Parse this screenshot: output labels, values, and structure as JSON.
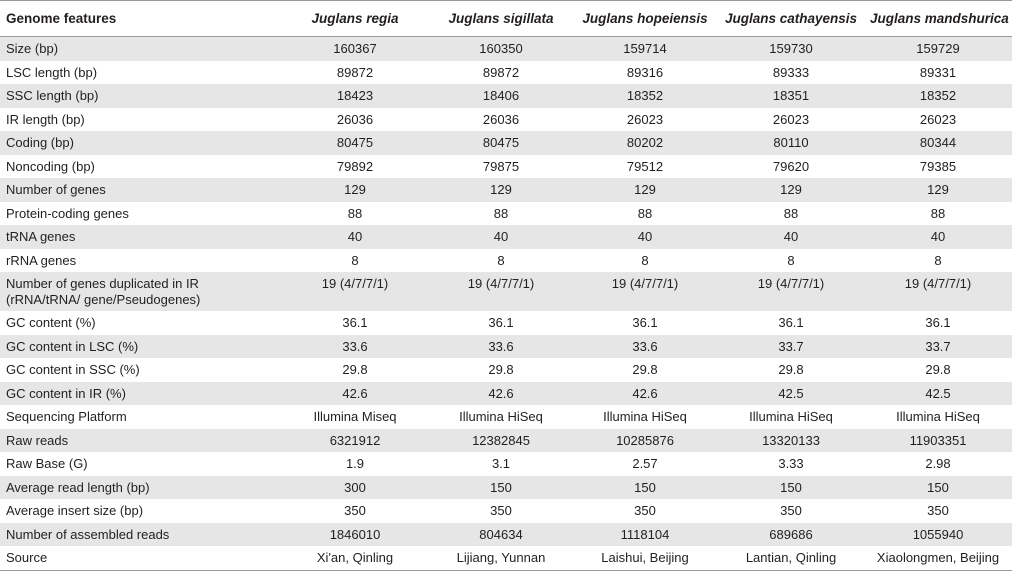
{
  "header": {
    "feature": "Genome features",
    "species": [
      "Juglans regia",
      "Juglans sigillata",
      "Juglans hopeiensis",
      "Juglans cathayensis",
      "Juglans mandshurica"
    ]
  },
  "rows": [
    {
      "label": "Size (bp)",
      "values": [
        "160367",
        "160350",
        "159714",
        "159730",
        "159729"
      ]
    },
    {
      "label": "LSC length (bp)",
      "values": [
        "89872",
        "89872",
        "89316",
        "89333",
        "89331"
      ]
    },
    {
      "label": "SSC length (bp)",
      "values": [
        "18423",
        "18406",
        "18352",
        "18351",
        "18352"
      ]
    },
    {
      "label": "IR length (bp)",
      "values": [
        "26036",
        "26036",
        "26023",
        "26023",
        "26023"
      ]
    },
    {
      "label": "Coding (bp)",
      "values": [
        "80475",
        "80475",
        "80202",
        "80110",
        "80344"
      ]
    },
    {
      "label": "Noncoding (bp)",
      "values": [
        "79892",
        "79875",
        "79512",
        "79620",
        "79385"
      ]
    },
    {
      "label": "Number of genes",
      "values": [
        "129",
        "129",
        "129",
        "129",
        "129"
      ]
    },
    {
      "label": "Protein-coding genes",
      "values": [
        "88",
        "88",
        "88",
        "88",
        "88"
      ]
    },
    {
      "label": "tRNA genes",
      "values": [
        "40",
        "40",
        "40",
        "40",
        "40"
      ]
    },
    {
      "label": "rRNA genes",
      "values": [
        "8",
        "8",
        "8",
        "8",
        "8"
      ]
    },
    {
      "label": "Number of genes duplicated in IR (rRNA/tRNA/ gene/Pseudogenes)",
      "values": [
        "19 (4/7/7/1)",
        "19 (4/7/7/1)",
        "19 (4/7/7/1)",
        "19 (4/7/7/1)",
        "19 (4/7/7/1)"
      ]
    },
    {
      "label": "GC content (%)",
      "values": [
        "36.1",
        "36.1",
        "36.1",
        "36.1",
        "36.1"
      ]
    },
    {
      "label": "GC content in LSC (%)",
      "values": [
        "33.6",
        "33.6",
        "33.6",
        "33.7",
        "33.7"
      ]
    },
    {
      "label": "GC content in SSC (%)",
      "values": [
        "29.8",
        "29.8",
        "29.8",
        "29.8",
        "29.8"
      ]
    },
    {
      "label": "GC content in IR (%)",
      "values": [
        "42.6",
        "42.6",
        "42.6",
        "42.5",
        "42.5"
      ]
    },
    {
      "label": "Sequencing Platform",
      "values": [
        "Illumina Miseq",
        "Illumina HiSeq",
        "Illumina HiSeq",
        "Illumina HiSeq",
        "Illumina HiSeq"
      ]
    },
    {
      "label": "Raw reads",
      "values": [
        "6321912",
        "12382845",
        "10285876",
        "13320133",
        "11903351"
      ]
    },
    {
      "label": "Raw Base (G)",
      "values": [
        "1.9",
        "3.1",
        "2.57",
        "3.33",
        "2.98"
      ]
    },
    {
      "label": "Average read length (bp)",
      "values": [
        "300",
        "150",
        "150",
        "150",
        "150"
      ]
    },
    {
      "label": "Average insert size (bp)",
      "values": [
        "350",
        "350",
        "350",
        "350",
        "350"
      ]
    },
    {
      "label": "Number of assembled reads",
      "values": [
        "1846010",
        "804634",
        "1118104",
        "689686",
        "1055940"
      ]
    },
    {
      "label": "Source",
      "values": [
        "Xi'an, Qinling",
        "Lijiang, Yunnan",
        "Laishui, Beijing",
        "Lantian, Qinling",
        "Xiaolongmen, Beijing"
      ]
    }
  ]
}
